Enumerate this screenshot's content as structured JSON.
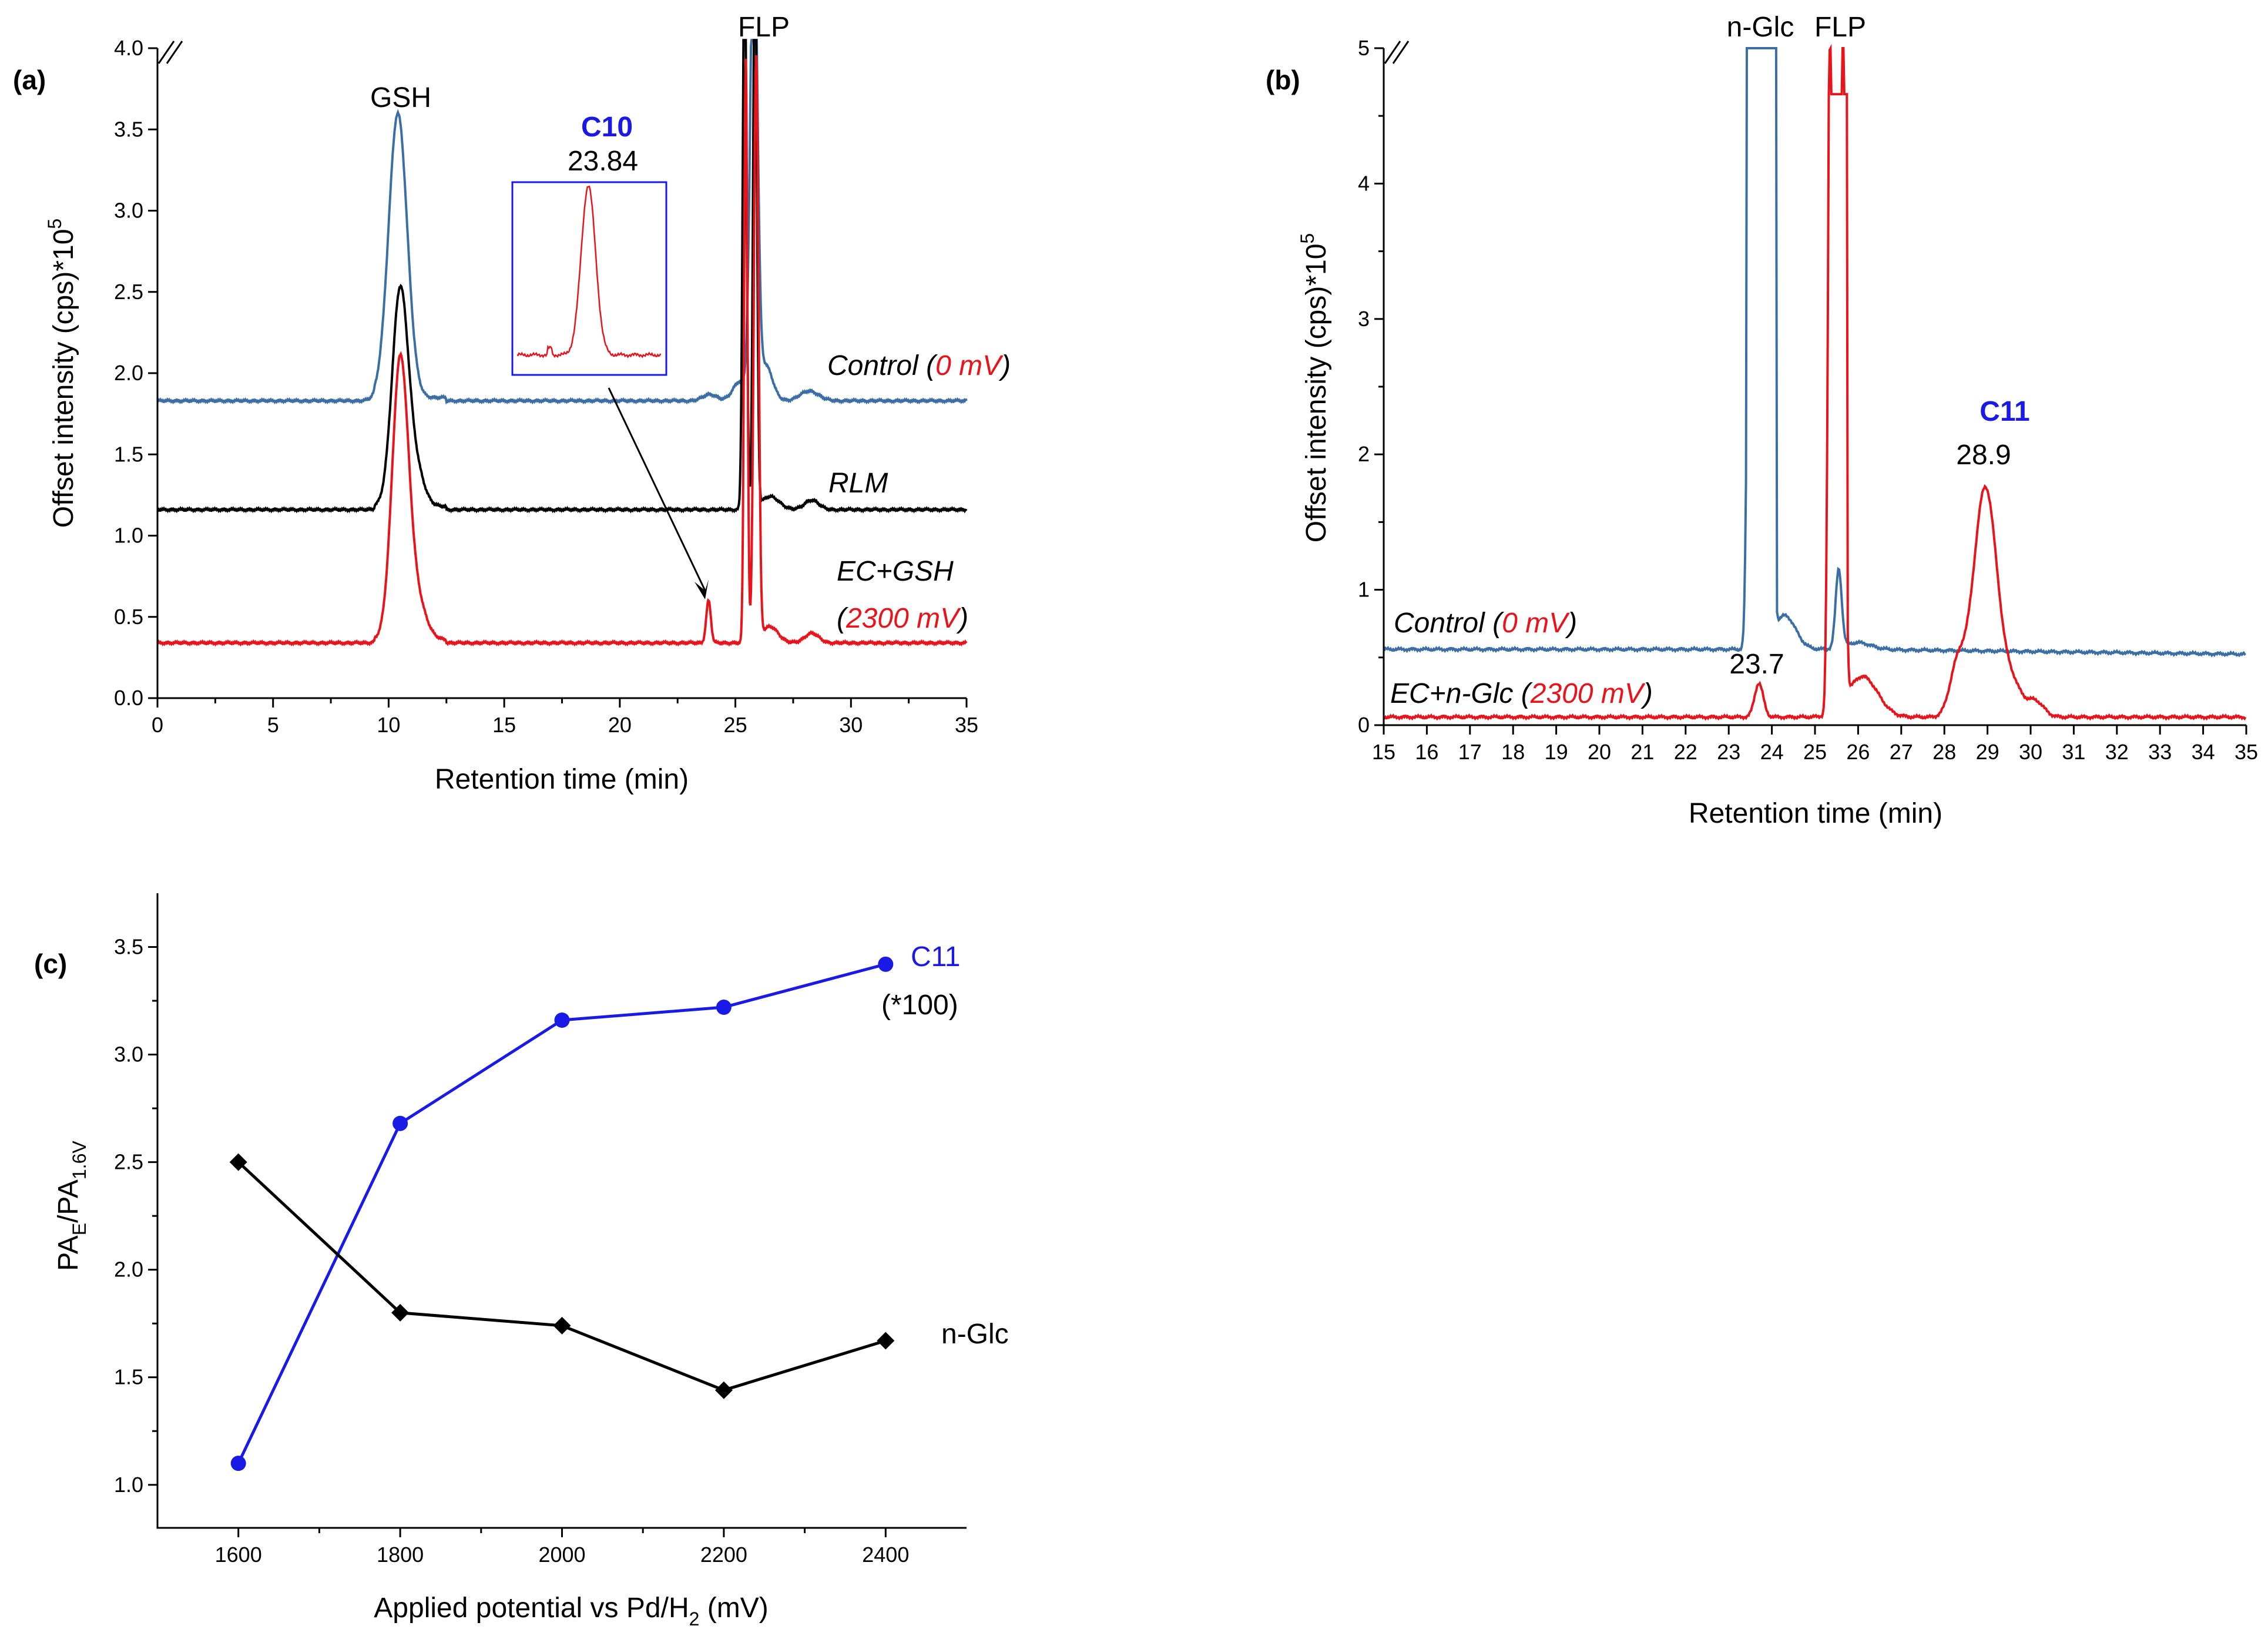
{
  "chart_data": [
    {
      "id": "a",
      "type": "line",
      "panel_label": "(a)",
      "xlabel": "Retention time (min)",
      "ylabel": "Offset intensity (cps)*10",
      "ylabel_sup": "5",
      "xlim": [
        0,
        35
      ],
      "ylim": [
        0,
        4.0
      ],
      "xticks": [
        "0",
        "5",
        "10",
        "15",
        "20",
        "25",
        "30",
        "35"
      ],
      "yticks": [
        "0.0",
        "0.5",
        "1.0",
        "1.5",
        "2.0",
        "2.5",
        "3.0",
        "3.5",
        "4.0"
      ],
      "colors": {
        "control": "#3a6ea5",
        "rlm": "#000000",
        "ec": "#e8141c",
        "highlight": "#1a1ae6"
      },
      "series": [
        {
          "name": "Control",
          "baseline": 1.83,
          "peaks": [
            [
              10.4,
              1.75,
              0.4
            ],
            [
              23.9,
              0.04,
              0.3
            ],
            [
              25.2,
              0.12,
              0.3
            ],
            [
              25.8,
              3.0,
              0.15
            ],
            [
              26.3,
              0.22,
              0.3
            ],
            [
              28.2,
              0.06,
              0.4
            ]
          ]
        },
        {
          "name": "RLM",
          "baseline": 1.16,
          "peaks": [
            [
              10.5,
              1.33,
              0.35
            ],
            [
              11.2,
              0.2,
              0.35
            ],
            [
              25.4,
              3.6,
              0.08
            ],
            [
              25.85,
              3.6,
              0.08
            ],
            [
              26.5,
              0.08,
              0.4
            ],
            [
              28.3,
              0.06,
              0.3
            ]
          ]
        },
        {
          "name": "EC+GSH",
          "baseline": 0.34,
          "peaks": [
            [
              10.5,
              1.7,
              0.35
            ],
            [
              11.2,
              0.24,
              0.4
            ],
            [
              23.84,
              0.26,
              0.1
            ],
            [
              25.45,
              3.6,
              0.07
            ],
            [
              25.9,
              3.6,
              0.1
            ],
            [
              26.5,
              0.1,
              0.35
            ],
            [
              28.3,
              0.06,
              0.3
            ]
          ]
        }
      ],
      "series_labels": {
        "control_name": "Control (",
        "control_value": "0 mV",
        "control_close": ")",
        "rlm": "RLM",
        "ec_name": "EC+GSH",
        "ec_open": "(",
        "ec_value": "2300 mV",
        "ec_close": ")"
      },
      "annotations": {
        "gsh": "GSH",
        "flp": "FLP",
        "compound": "C10",
        "compound_rt": "23.84"
      }
    },
    {
      "id": "b",
      "type": "line",
      "panel_label": "(b)",
      "xlabel": "Retention time (min)",
      "ylabel": "Offset intensity (cps)*10",
      "ylabel_sup": "5",
      "xlim": [
        15,
        35
      ],
      "ylim": [
        0,
        5
      ],
      "xticks": [
        "15",
        "16",
        "17",
        "18",
        "19",
        "20",
        "21",
        "22",
        "23",
        "24",
        "25",
        "26",
        "27",
        "28",
        "29",
        "30",
        "31",
        "32",
        "33",
        "34",
        "35"
      ],
      "yticks": [
        "0",
        "1",
        "2",
        "3",
        "4",
        "5"
      ],
      "colors": {
        "control": "#3a6ea5",
        "ec": "#e8141c",
        "highlight": "#1a1ae6"
      },
      "series": [
        {
          "name": "Control",
          "baseline": 0.56,
          "peaks": [
            [
              23.5,
              5.0,
              0.06
            ],
            [
              23.95,
              5.0,
              0.06
            ],
            [
              24.3,
              0.25,
              0.25
            ],
            [
              25.55,
              0.58,
              0.07
            ],
            [
              26.0,
              0.05,
              0.3
            ]
          ]
        },
        {
          "name": "EC+n-Glc",
          "baseline": 0.06,
          "peaks": [
            [
              23.7,
              0.25,
              0.1
            ],
            [
              25.35,
              5.0,
              0.05
            ],
            [
              25.65,
              5.0,
              0.05
            ],
            [
              26.1,
              0.3,
              0.35
            ],
            [
              28.3,
              0.35,
              0.18
            ],
            [
              28.95,
              1.7,
              0.28
            ],
            [
              29.6,
              0.2,
              0.2
            ],
            [
              30.1,
              0.12,
              0.2
            ]
          ]
        }
      ],
      "series_labels": {
        "control_name": "Control (",
        "control_value": "0 mV",
        "control_close": ")",
        "ec_name": "EC+n-Glc (",
        "ec_value": "2300 mV",
        "ec_close": ")"
      },
      "annotations": {
        "nglc": "n-Glc",
        "flp": "FLP",
        "compound": "C11",
        "compound_rt": "28.9",
        "small_rt": "23.7"
      }
    },
    {
      "id": "c",
      "type": "line",
      "panel_label": "(c)",
      "xlabel": "Applied potential vs Pd/H",
      "xlabel_sub": "2",
      "xlabel_unit": " (mV)",
      "ylabel_main": "PA",
      "ylabel_sub1": "E",
      "ylabel_mid": "/PA",
      "ylabel_sub2": "1.6V",
      "xlim": [
        1500,
        2500
      ],
      "ylim": [
        0.8,
        3.75
      ],
      "xticks": [
        1600,
        1800,
        2000,
        2200,
        2400
      ],
      "xtick_labels": [
        "1600",
        "1800",
        "2000",
        "2200",
        "2400"
      ],
      "yticks": [
        1.0,
        1.5,
        2.0,
        2.5,
        3.0,
        3.5
      ],
      "ytick_labels": [
        "1.0",
        "1.5",
        "2.0",
        "2.5",
        "3.0",
        "3.5"
      ],
      "series": [
        {
          "name": "C11",
          "note": "(*100)",
          "color": "#1a1ae6",
          "marker": "circle",
          "x": [
            1600,
            1800,
            2000,
            2200,
            2400
          ],
          "y": [
            1.1,
            2.68,
            3.16,
            3.22,
            3.42
          ]
        },
        {
          "name": "n-Glc",
          "color": "#000000",
          "marker": "diamond",
          "x": [
            1600,
            1800,
            2000,
            2200,
            2400
          ],
          "y": [
            2.5,
            1.8,
            1.74,
            1.44,
            1.67
          ]
        }
      ]
    }
  ]
}
